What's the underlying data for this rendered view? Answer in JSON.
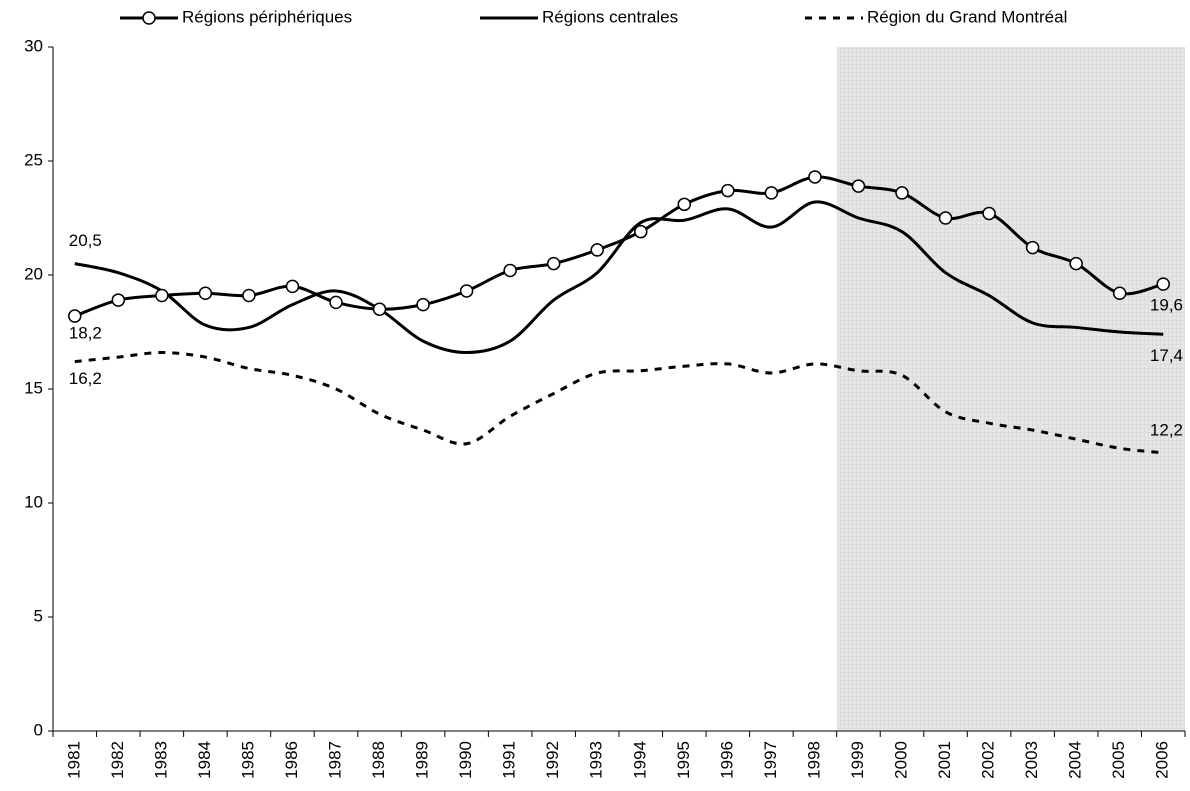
{
  "chart_data": {
    "type": "line",
    "categories": [
      "1981",
      "1982",
      "1983",
      "1984",
      "1985",
      "1986",
      "1987",
      "1988",
      "1989",
      "1990",
      "1991",
      "1992",
      "1993",
      "1994",
      "1995",
      "1996",
      "1997",
      "1998",
      "1999",
      "2000",
      "2001",
      "2002",
      "2003",
      "2004",
      "2005",
      "2006"
    ],
    "series": [
      {
        "name": "Régions périphériques",
        "color": "#000000",
        "marker": "circle",
        "dash": "solid",
        "values": [
          18.2,
          18.9,
          19.1,
          19.2,
          19.1,
          19.5,
          18.8,
          18.5,
          18.7,
          19.3,
          20.2,
          20.5,
          21.1,
          21.9,
          23.1,
          23.7,
          23.6,
          24.3,
          23.9,
          23.6,
          22.5,
          22.7,
          21.2,
          20.5,
          19.2,
          19.6
        ],
        "value_labels": [
          "18,2",
          null,
          null,
          null,
          null,
          null,
          null,
          null,
          null,
          null,
          null,
          null,
          null,
          null,
          null,
          null,
          null,
          null,
          null,
          null,
          null,
          null,
          null,
          null,
          null,
          "19,6"
        ]
      },
      {
        "name": "Régions centrales",
        "color": "#000000",
        "marker": "none",
        "dash": "solid",
        "values": [
          20.5,
          20.1,
          19.3,
          17.8,
          17.7,
          18.7,
          19.3,
          18.5,
          17.1,
          16.6,
          17.1,
          18.9,
          20.1,
          22.3,
          22.4,
          22.9,
          22.1,
          23.2,
          22.5,
          21.9,
          20.1,
          19.1,
          17.9,
          17.7,
          17.5,
          17.4
        ],
        "value_labels": [
          "20,5",
          null,
          null,
          null,
          null,
          null,
          null,
          null,
          null,
          null,
          null,
          null,
          null,
          null,
          null,
          null,
          null,
          null,
          null,
          null,
          null,
          null,
          null,
          null,
          null,
          "17,4"
        ]
      },
      {
        "name": "Région du Grand Montréal",
        "color": "#000000",
        "marker": "none",
        "dash": "dashed",
        "values": [
          16.2,
          16.4,
          16.6,
          16.4,
          15.9,
          15.6,
          15.0,
          13.9,
          13.2,
          12.6,
          13.8,
          14.8,
          15.7,
          15.8,
          16.0,
          16.1,
          15.7,
          16.1,
          15.8,
          15.6,
          14.0,
          13.5,
          13.2,
          12.8,
          12.4,
          12.2
        ],
        "value_labels": [
          "16,2",
          null,
          null,
          null,
          null,
          null,
          null,
          null,
          null,
          null,
          null,
          null,
          null,
          null,
          null,
          null,
          null,
          null,
          null,
          null,
          null,
          null,
          null,
          null,
          null,
          "12,2"
        ]
      }
    ],
    "ylim": [
      0,
      30
    ],
    "yticks": [
      0,
      5,
      10,
      15,
      20,
      25,
      30
    ],
    "highlight": {
      "from": "1999",
      "to": "2006",
      "color": "#dcdcdc"
    },
    "legend": "top"
  }
}
